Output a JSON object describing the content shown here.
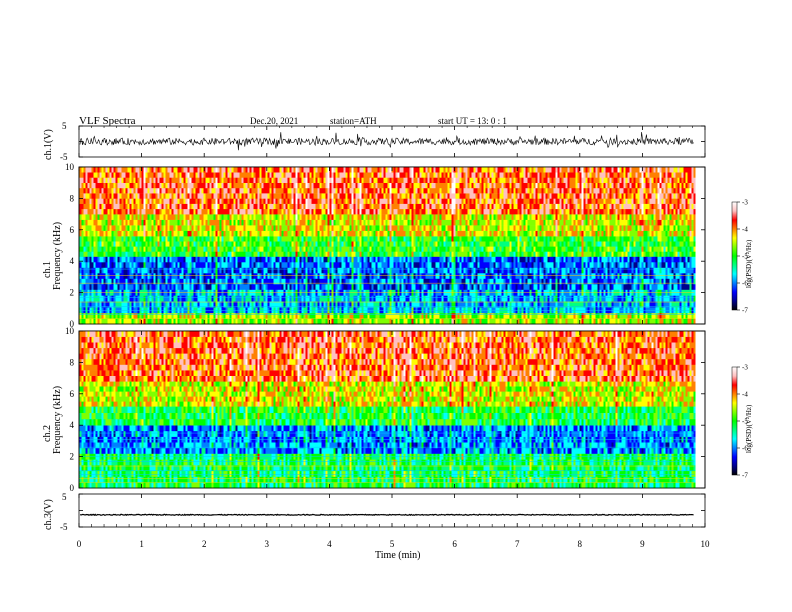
{
  "header": {
    "title": "VLF  Spectra",
    "date": "Dec.20, 2021",
    "station": "station=ATH",
    "start": "start  UT  =    13: 0   : 1"
  },
  "chart_data": [
    {
      "type": "line",
      "panel": "ch1-waveform",
      "ylabel": "ch.1(V)",
      "ylim": [
        -5,
        5
      ],
      "yticks": [
        "5",
        "-5"
      ],
      "xlim": [
        0,
        10
      ],
      "baseline": 0,
      "amplitude_note": "noisy signal roughly between -2.5 and 2.5 V",
      "line_color": "#000000"
    },
    {
      "type": "heatmap",
      "panel": "ch1-spectrogram",
      "ylabel_line1": "ch.1",
      "ylabel_line2": "Frequency (kHz)",
      "ylim": [
        0,
        10
      ],
      "yticks": [
        "0",
        "2",
        "4",
        "6",
        "8",
        "10"
      ],
      "xlim": [
        0,
        9.83
      ],
      "bands": [
        {
          "from": 0,
          "to": 0.7,
          "level": -4.6
        },
        {
          "from": 0.7,
          "to": 2.2,
          "level": -5.8
        },
        {
          "from": 2.2,
          "to": 4.3,
          "level": -6.1
        },
        {
          "from": 4.3,
          "to": 5.6,
          "level": -5.0
        },
        {
          "from": 5.6,
          "to": 7.0,
          "level": -4.4
        },
        {
          "from": 7.0,
          "to": 10,
          "level": -3.8
        }
      ],
      "colorbar": {
        "label": "log(PSD)(V²/Hz)",
        "range": [
          -7,
          -3
        ],
        "ticks": [
          "-3",
          "-4",
          "-5",
          "-6",
          "-7"
        ]
      }
    },
    {
      "type": "heatmap",
      "panel": "ch2-spectrogram",
      "ylabel_line1": "ch.2",
      "ylabel_line2": "Frequency (kHz)",
      "ylim": [
        0,
        10
      ],
      "yticks": [
        "0",
        "2",
        "4",
        "6",
        "8",
        "10"
      ],
      "xlim": [
        0,
        9.83
      ],
      "bands": [
        {
          "from": 0,
          "to": 2.2,
          "level": -5.2
        },
        {
          "from": 2.2,
          "to": 4.0,
          "level": -6.0
        },
        {
          "from": 4.0,
          "to": 5.2,
          "level": -5.1
        },
        {
          "from": 5.2,
          "to": 6.8,
          "level": -4.4
        },
        {
          "from": 6.8,
          "to": 10,
          "level": -3.8
        }
      ],
      "colorbar": {
        "label": "log(PSD)(V²/Hz)",
        "range": [
          -7,
          -3
        ],
        "ticks": [
          "-3",
          "-4",
          "-5",
          "-6",
          "-7"
        ]
      }
    },
    {
      "type": "line",
      "panel": "ch3-waveform",
      "ylabel": "ch.3(V)",
      "ylim": [
        -5,
        5
      ],
      "yticks": [
        "5",
        "-5"
      ],
      "xlim": [
        0,
        10
      ],
      "baseline": -1.3,
      "amplitude_note": "flat trace near -1.3 V with small ripple",
      "line_color": "#000000"
    }
  ],
  "xaxis": {
    "label": "Time  (min)",
    "ticks": [
      "0",
      "1",
      "2",
      "3",
      "4",
      "5",
      "6",
      "7",
      "8",
      "9",
      "10"
    ],
    "range": [
      0,
      10
    ]
  },
  "colors": {
    "scale": [
      "#000000",
      "#00008b",
      "#0000ff",
      "#0080ff",
      "#00ffff",
      "#00ff80",
      "#00ff00",
      "#80ff00",
      "#ffff00",
      "#ff8000",
      "#ff0000",
      "#ffc0c0",
      "#ffffff"
    ]
  }
}
